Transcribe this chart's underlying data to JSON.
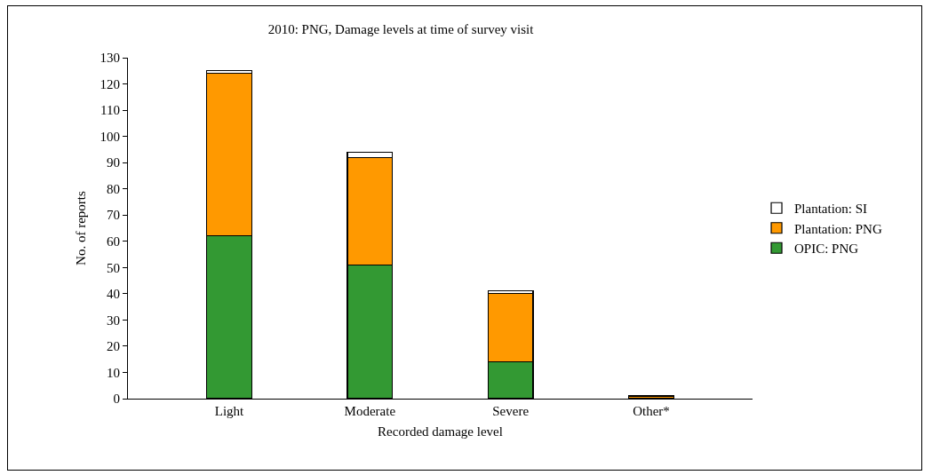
{
  "chart_data": {
    "type": "bar",
    "title": "2010: PNG, Damage levels at time of survey visit",
    "xlabel": "Recorded damage level",
    "ylabel": "No. of reports",
    "categories": [
      "Light",
      "Moderate",
      "Severe",
      "Other*"
    ],
    "stacked": true,
    "series": [
      {
        "name": "OPIC: PNG",
        "color": "#339933",
        "values": [
          62,
          51,
          14,
          null
        ]
      },
      {
        "name": "Plantation: PNG",
        "color": "#ff9900",
        "values": [
          62,
          41,
          26,
          1
        ]
      },
      {
        "name": "Plantation: SI",
        "color": "#ffffff",
        "values": [
          1,
          2,
          1,
          null
        ]
      }
    ],
    "ylim": [
      0,
      130
    ],
    "yticks": [
      0,
      10,
      20,
      30,
      40,
      50,
      60,
      70,
      80,
      90,
      100,
      110,
      120,
      130
    ],
    "grid": false,
    "legend": "right"
  }
}
